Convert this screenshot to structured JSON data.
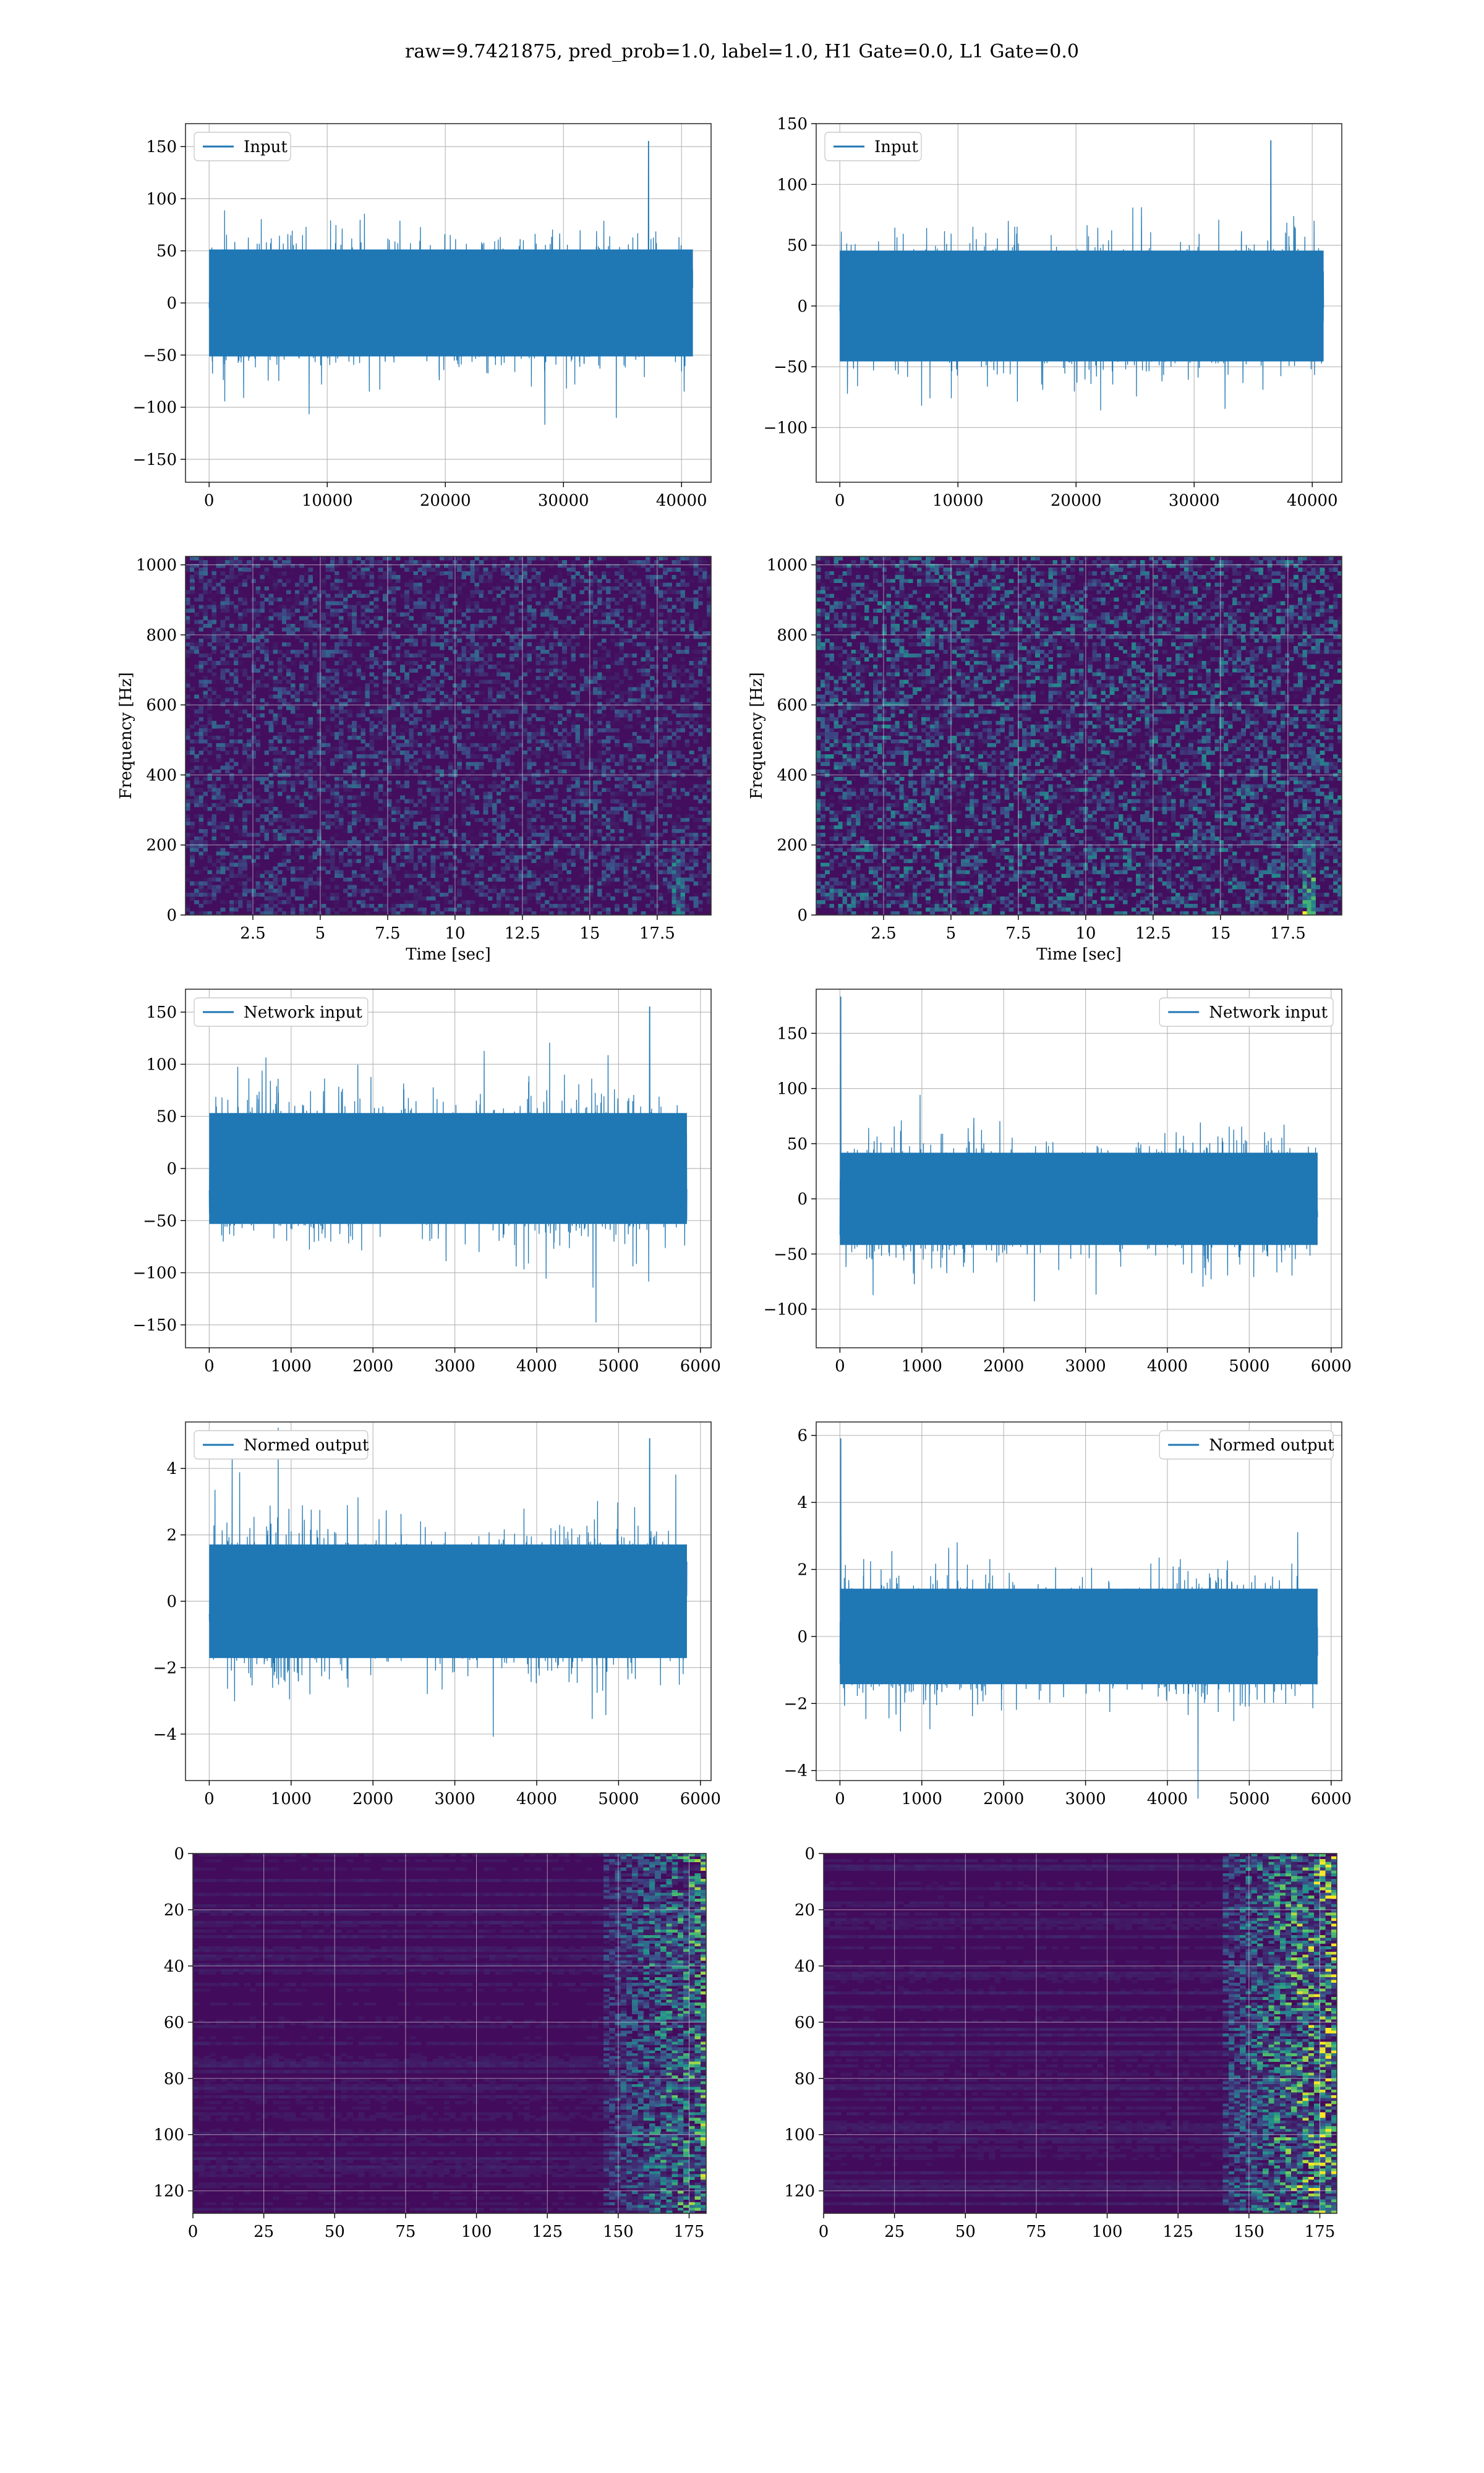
{
  "suptitle": "raw=9.7421875, pred_prob=1.0, label=1.0, H1 Gate=0.0, L1 Gate=0.0",
  "colors": {
    "line": "#1f77b4"
  },
  "chart_data": [
    {
      "id": "r1l",
      "type": "line",
      "series": [
        {
          "name": "Input"
        }
      ],
      "legend": "upper left",
      "xlim": [
        -2000,
        42500
      ],
      "ylim": [
        -172,
        172
      ],
      "xticks": [
        0,
        10000,
        20000,
        30000,
        40000
      ],
      "yticks": [
        -150,
        -100,
        -50,
        0,
        50,
        100,
        150
      ],
      "signal": {
        "n": 40960,
        "sigma": 27,
        "peak": 155,
        "peak_at": 37200,
        "drift": 0
      }
    },
    {
      "id": "r1r",
      "type": "line",
      "series": [
        {
          "name": "Input"
        }
      ],
      "legend": "upper left",
      "xlim": [
        -2000,
        42500
      ],
      "ylim": [
        -145,
        150
      ],
      "xticks": [
        0,
        10000,
        20000,
        30000,
        40000
      ],
      "yticks": [
        -100,
        -50,
        0,
        50,
        100,
        150
      ],
      "signal": {
        "n": 40960,
        "sigma": 24,
        "peak": 136,
        "peak_at": 36500,
        "drift": 0
      }
    },
    {
      "id": "r2l",
      "type": "heatmap",
      "ylabel": "Frequency [Hz]",
      "xlabel": "Time [sec]",
      "xlim": [
        0,
        19.5
      ],
      "ylim": [
        0,
        1024
      ],
      "xticks": [
        2.5,
        5.0,
        7.5,
        10.0,
        12.5,
        15.0,
        17.5
      ],
      "yticks": [
        0,
        200,
        400,
        600,
        800,
        1000
      ],
      "signal": {
        "t": 18.3,
        "intensity": 0.5,
        "density": 0.5
      }
    },
    {
      "id": "r2r",
      "type": "heatmap",
      "ylabel": "Frequency [Hz]",
      "xlabel": "Time [sec]",
      "xlim": [
        0,
        19.5
      ],
      "ylim": [
        0,
        1024
      ],
      "xticks": [
        2.5,
        5.0,
        7.5,
        10.0,
        12.5,
        15.0,
        17.5
      ],
      "yticks": [
        0,
        200,
        400,
        600,
        800,
        1000
      ],
      "signal": {
        "t": 18.3,
        "intensity": 0.8,
        "density": 1.0
      }
    },
    {
      "id": "r3l",
      "type": "line",
      "series": [
        {
          "name": "Network input"
        }
      ],
      "legend": "upper left",
      "xlim": [
        -290,
        6130
      ],
      "ylim": [
        -172,
        172
      ],
      "xticks": [
        0,
        1000,
        2000,
        3000,
        4000,
        5000,
        6000
      ],
      "yticks": [
        -150,
        -100,
        -50,
        0,
        50,
        100,
        150
      ],
      "signal": {
        "n": 5835,
        "sigma": 28,
        "peak": 155,
        "peak_at": 5380,
        "drift": 0.15
      }
    },
    {
      "id": "r3r",
      "type": "line",
      "series": [
        {
          "name": "Network input"
        }
      ],
      "legend": "upper right",
      "xlim": [
        -290,
        6130
      ],
      "ylim": [
        -135,
        190
      ],
      "xticks": [
        0,
        1000,
        2000,
        3000,
        4000,
        5000,
        6000
      ],
      "yticks": [
        -100,
        -50,
        0,
        50,
        100,
        150
      ],
      "signal": {
        "n": 5835,
        "sigma": 22,
        "peak": 183,
        "peak_at": 10,
        "drift": 0.15
      }
    },
    {
      "id": "r4l",
      "type": "line",
      "series": [
        {
          "name": "Normed output"
        }
      ],
      "legend": "upper left",
      "xlim": [
        -290,
        6130
      ],
      "ylim": [
        -5.4,
        5.4
      ],
      "xticks": [
        0,
        1000,
        2000,
        3000,
        4000,
        5000,
        6000
      ],
      "yticks": [
        -4,
        -2,
        0,
        2,
        4
      ],
      "signal": {
        "n": 5835,
        "sigma": 0.9,
        "peak": 4.9,
        "peak_at": 5380,
        "drift": 0.15
      }
    },
    {
      "id": "r4r",
      "type": "line",
      "series": [
        {
          "name": "Normed output"
        }
      ],
      "legend": "upper right",
      "xlim": [
        -290,
        6130
      ],
      "ylim": [
        -4.3,
        6.4
      ],
      "xticks": [
        0,
        1000,
        2000,
        3000,
        4000,
        5000,
        6000
      ],
      "yticks": [
        -4,
        -2,
        0,
        2,
        4,
        6
      ],
      "signal": {
        "n": 5835,
        "sigma": 0.75,
        "peak": 5.9,
        "peak_at": 10,
        "drift": 0.15
      }
    },
    {
      "id": "r5l",
      "type": "heatmap",
      "xlim": [
        0,
        181
      ],
      "ylim": [
        0,
        128
      ],
      "yinvert": true,
      "xticks": [
        0,
        25,
        50,
        75,
        100,
        125,
        150,
        175
      ],
      "yticks": [
        0,
        20,
        40,
        60,
        80,
        100,
        120
      ],
      "signal": {
        "onset": 145,
        "intensity": 0.7
      }
    },
    {
      "id": "r5r",
      "type": "heatmap",
      "xlim": [
        0,
        181
      ],
      "ylim": [
        0,
        128
      ],
      "yinvert": true,
      "xticks": [
        0,
        25,
        50,
        75,
        100,
        125,
        150,
        175
      ],
      "yticks": [
        0,
        20,
        40,
        60,
        80,
        100,
        120
      ],
      "signal": {
        "onset": 140,
        "intensity": 0.9
      }
    }
  ]
}
